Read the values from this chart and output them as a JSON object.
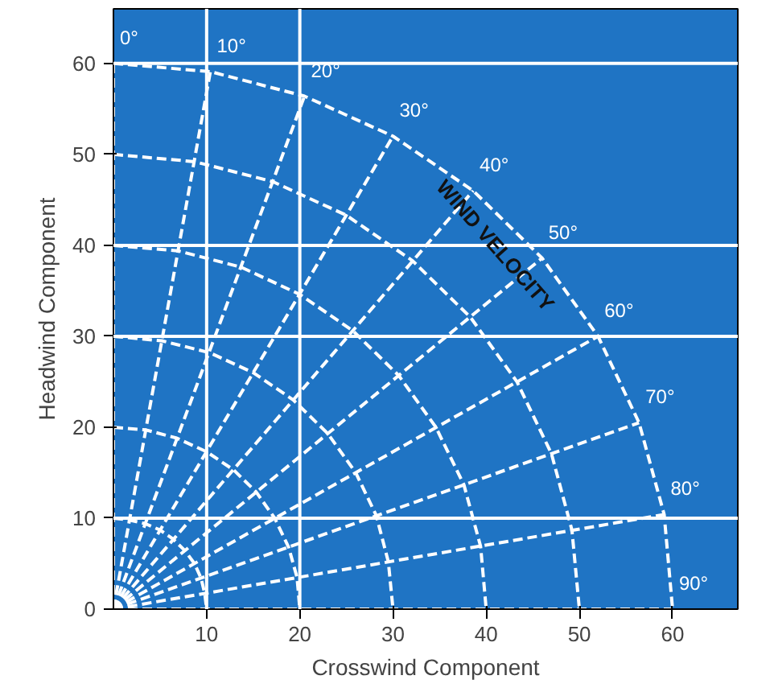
{
  "chart_data": {
    "type": "line",
    "xlabel": "Crosswind Component",
    "ylabel": "Headwind Component",
    "xlim": [
      0,
      67
    ],
    "ylim": [
      0,
      66
    ],
    "xticks": [
      10,
      20,
      30,
      40,
      50,
      60
    ],
    "yticks": [
      0,
      10,
      20,
      30,
      40,
      50,
      60
    ],
    "grid": false,
    "line_style": "dashed",
    "marker": "none",
    "ref_lines": [
      {
        "axis": "x",
        "value": 10,
        "color": "#ffffff",
        "line_style": "solid"
      },
      {
        "axis": "x",
        "value": 20,
        "color": "#ffffff",
        "line_style": "solid"
      },
      {
        "axis": "y",
        "value": 10,
        "color": "#ffffff",
        "line_style": "solid"
      },
      {
        "axis": "y",
        "value": 30,
        "color": "#ffffff",
        "line_style": "solid"
      },
      {
        "axis": "y",
        "value": 40,
        "color": "#ffffff",
        "line_style": "solid"
      },
      {
        "axis": "y",
        "value": 60,
        "color": "#ffffff",
        "line_style": "solid"
      }
    ],
    "annotations": [
      {
        "text": "WIND VELOCITY",
        "x": 41,
        "y": 40
      }
    ],
    "series": [
      {
        "name": "0°",
        "color": "#ffffff",
        "x": [
          0,
          0
        ],
        "values": [
          0,
          60
        ]
      },
      {
        "name": "10°",
        "color": "#ffffff",
        "x": [
          0,
          10.4
        ],
        "values": [
          0,
          59.1
        ]
      },
      {
        "name": "20°",
        "color": "#ffffff",
        "x": [
          0,
          20.5
        ],
        "values": [
          0,
          56.4
        ]
      },
      {
        "name": "30°",
        "color": "#ffffff",
        "x": [
          0,
          30
        ],
        "values": [
          0,
          52
        ]
      },
      {
        "name": "40°",
        "color": "#ffffff",
        "x": [
          0,
          38.6
        ],
        "values": [
          0,
          46
        ]
      },
      {
        "name": "50°",
        "color": "#ffffff",
        "x": [
          0,
          46
        ],
        "values": [
          0,
          38.6
        ]
      },
      {
        "name": "60°",
        "color": "#ffffff",
        "x": [
          0,
          52
        ],
        "values": [
          0,
          30
        ]
      },
      {
        "name": "70°",
        "color": "#ffffff",
        "x": [
          0,
          56.4
        ],
        "values": [
          0,
          20.5
        ]
      },
      {
        "name": "80°",
        "color": "#ffffff",
        "x": [
          0,
          59.1
        ],
        "values": [
          0,
          10.4
        ]
      },
      {
        "name": "90°",
        "color": "#ffffff",
        "x": [
          0,
          60
        ],
        "values": [
          0,
          0
        ]
      },
      {
        "color": "#ffffff",
        "x": [
          0,
          1.7,
          3.4,
          5,
          6.4,
          7.7,
          8.7,
          9.4,
          9.8,
          10
        ],
        "values": [
          10,
          9.8,
          9.4,
          8.7,
          7.7,
          6.4,
          5,
          3.4,
          1.7,
          0
        ]
      },
      {
        "color": "#ffffff",
        "x": [
          0,
          3.5,
          6.8,
          10,
          12.9,
          15.3,
          17.3,
          18.8,
          19.7,
          20
        ],
        "values": [
          20,
          19.7,
          18.8,
          17.3,
          15.3,
          12.9,
          10,
          6.8,
          3.5,
          0
        ]
      },
      {
        "color": "#ffffff",
        "x": [
          0,
          5.2,
          10.3,
          15,
          19.3,
          23,
          26,
          28.2,
          29.5,
          30
        ],
        "values": [
          30,
          29.5,
          28.2,
          26,
          23,
          19.3,
          15,
          10.3,
          5.2,
          0
        ]
      },
      {
        "color": "#ffffff",
        "x": [
          0,
          6.9,
          13.7,
          20,
          25.7,
          30.6,
          34.6,
          37.6,
          39.4,
          40
        ],
        "values": [
          40,
          39.4,
          37.6,
          34.6,
          30.6,
          25.7,
          20,
          13.7,
          6.9,
          0
        ]
      },
      {
        "color": "#ffffff",
        "x": [
          0,
          8.7,
          17.1,
          25,
          32.1,
          38.3,
          43.3,
          47,
          49.2,
          50
        ],
        "values": [
          50,
          49.2,
          47,
          43.3,
          38.3,
          32.1,
          25,
          17.1,
          8.7,
          0
        ]
      },
      {
        "color": "#ffffff",
        "x": [
          0,
          10.4,
          20.5,
          30,
          38.6,
          46,
          52,
          56.4,
          59.1,
          60
        ],
        "values": [
          60,
          59.1,
          56.4,
          52,
          46,
          38.6,
          30,
          20.5,
          10.4,
          0
        ]
      }
    ]
  }
}
